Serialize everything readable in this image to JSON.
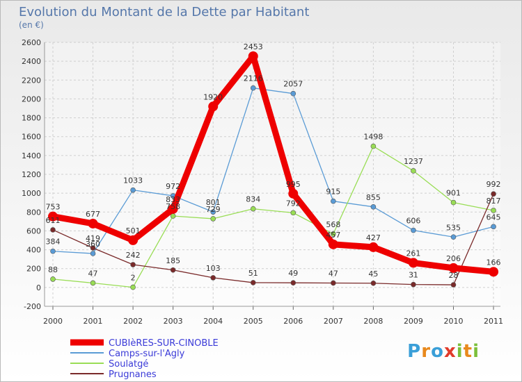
{
  "chart_data": {
    "type": "line",
    "title": "Evolution du Montant de la Dette par Habitant",
    "subtitle": "(en €)",
    "xlabel": "",
    "ylabel": "",
    "categories": [
      "2000",
      "2001",
      "2002",
      "2003",
      "2004",
      "2005",
      "2006",
      "2007",
      "2008",
      "2009",
      "2010",
      "2011"
    ],
    "ylim": [
      -200,
      2600
    ],
    "yticks": [
      "-200",
      "0",
      "200",
      "400",
      "600",
      "800",
      "1000",
      "1200",
      "1400",
      "1600",
      "1800",
      "2000",
      "2200",
      "2400",
      "2600"
    ],
    "grid": true,
    "legend_position": "bottom-left",
    "series": [
      {
        "name": "CUBIèRES-SUR-CINOBLE",
        "color": "#ee0000",
        "emphasis": true,
        "values": [
          753,
          677,
          501,
          833,
          1920,
          2453,
          995,
          457,
          427,
          261,
          206,
          166
        ],
        "labels": [
          "753",
          "677",
          "501",
          "833",
          "1920",
          "2453",
          "995",
          "457",
          "427",
          "261",
          "206",
          "166"
        ]
      },
      {
        "name": "Camps-sur-l'Agly",
        "color": "#5a9bd5",
        "emphasis": false,
        "values": [
          384,
          360,
          1033,
          972,
          801,
          2116,
          2057,
          915,
          855,
          606,
          535,
          645
        ],
        "labels": [
          "384",
          "360",
          "1033",
          "972",
          "801",
          "2116",
          "2057",
          "915",
          "855",
          "606",
          "535",
          "645"
        ]
      },
      {
        "name": "Soulatgé",
        "color": "#99dd55",
        "emphasis": false,
        "values": [
          88,
          47,
          2,
          758,
          729,
          834,
          792,
          568,
          1498,
          1237,
          901,
          817
        ],
        "labels": [
          "88",
          "47",
          "2",
          "758",
          "729",
          "834",
          "792",
          "568",
          "1498",
          "1237",
          "901",
          "817"
        ]
      },
      {
        "name": "Prugnanes",
        "color": "#7a2a2a",
        "emphasis": false,
        "values": [
          611,
          419,
          242,
          185,
          103,
          51,
          49,
          47,
          45,
          31,
          28,
          992
        ],
        "labels": [
          "611",
          "419",
          "242",
          "185",
          "103",
          "51",
          "49",
          "47",
          "45",
          "31",
          "28",
          "992"
        ]
      }
    ]
  },
  "branding": {
    "logo_letters": [
      "P",
      "r",
      "o",
      "x",
      "i",
      "t",
      "i"
    ]
  }
}
